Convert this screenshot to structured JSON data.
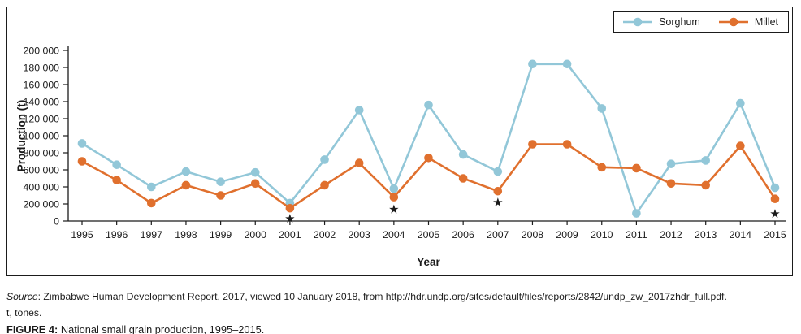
{
  "legend": {
    "items": [
      {
        "label": "Sorghum"
      },
      {
        "label": "Millet"
      }
    ]
  },
  "caption": {
    "source_label": "Source",
    "source_text": ": Zimbabwe Human Development Report, 2017, viewed 10 January 2018, from http://hdr.undp.org/sites/default/files/reports/2842/undp_zw_2017zhdr_full.pdf.",
    "note": "t, tones.",
    "figure_label": "FIGURE 4:",
    "figure_title": "National small grain production, 1995–2015."
  },
  "chart_data": {
    "type": "line",
    "title": "",
    "xlabel": "Year",
    "ylabel": "Production (t)",
    "x": [
      1995,
      1996,
      1997,
      1998,
      1999,
      2000,
      2001,
      2002,
      2003,
      2004,
      2005,
      2006,
      2007,
      2008,
      2009,
      2010,
      2011,
      2012,
      2013,
      2014,
      2015
    ],
    "ylim": [
      0,
      200000
    ],
    "ytick_step": 20000,
    "ytick_labels_bottom_to_top": [
      "0",
      "200 000",
      "400 000",
      "600 000",
      "800 000",
      "100 000",
      "120 000",
      "140 000",
      "160 000",
      "180 000",
      "200 000"
    ],
    "grid": false,
    "legend_position": "top-right",
    "series": [
      {
        "name": "Sorghum",
        "color": "#92C7D8",
        "values": [
          91000,
          66000,
          40000,
          58000,
          46000,
          57000,
          21000,
          72000,
          130000,
          38000,
          136000,
          78000,
          58000,
          184000,
          184000,
          132000,
          9000,
          67000,
          71000,
          138000,
          39000
        ]
      },
      {
        "name": "Millet",
        "color": "#E0702E",
        "values": [
          70000,
          48000,
          21000,
          42000,
          30000,
          44000,
          15000,
          42000,
          68000,
          28000,
          74000,
          50000,
          35000,
          90000,
          90000,
          63000,
          62000,
          44000,
          42000,
          88000,
          26000
        ]
      }
    ],
    "annotations": {
      "marker": "star",
      "color": "#D5232E",
      "points": [
        {
          "x": 2001,
          "y": 3000
        },
        {
          "x": 2004,
          "y": 14000
        },
        {
          "x": 2007,
          "y": 22000
        },
        {
          "x": 2015,
          "y": 9000
        }
      ]
    },
    "axis_color": "#1b1b1b"
  }
}
